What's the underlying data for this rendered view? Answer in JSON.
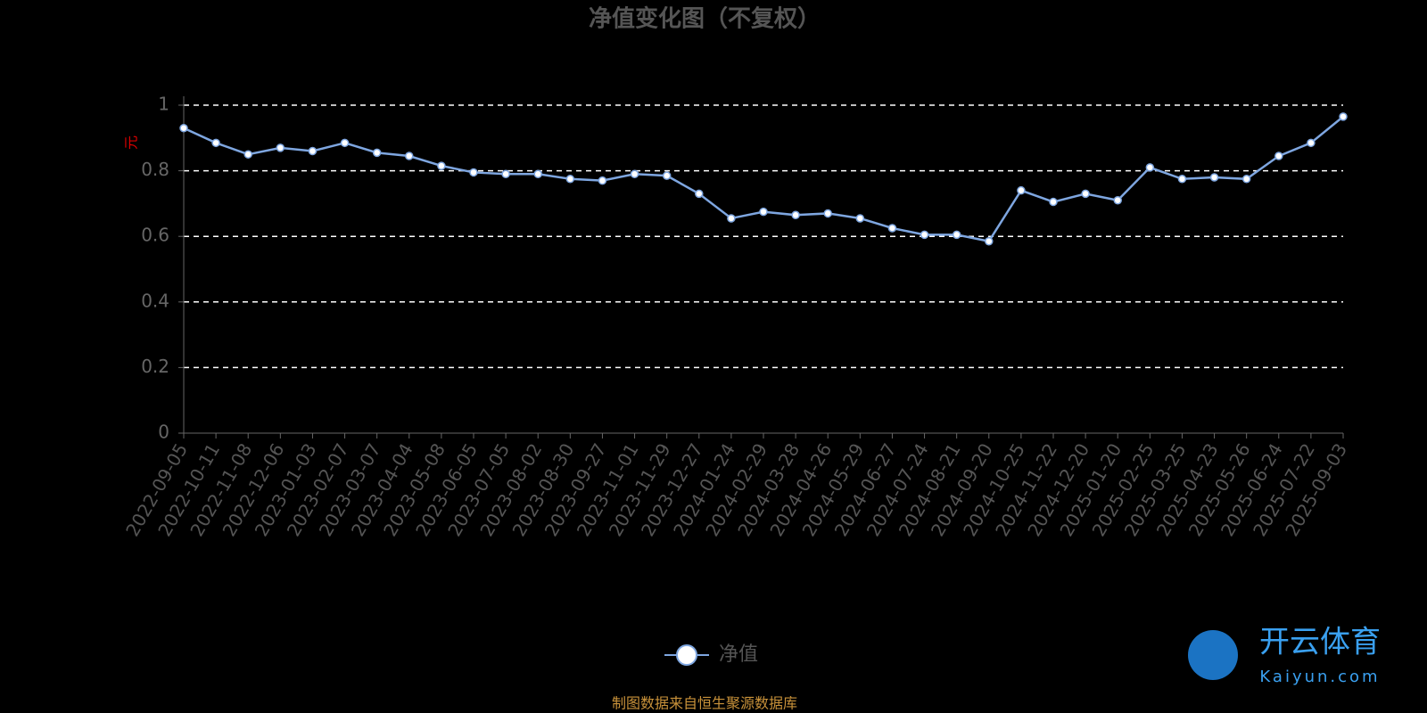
{
  "chart_data": {
    "type": "line",
    "title": "净值变化图（不复权）",
    "y_label": "元",
    "categories": [
      "2022-09-05",
      "2022-10-11",
      "2022-11-08",
      "2022-12-06",
      "2023-01-03",
      "2023-02-07",
      "2023-03-07",
      "2023-04-04",
      "2023-05-08",
      "2023-06-05",
      "2023-07-05",
      "2023-08-02",
      "2023-08-30",
      "2023-09-27",
      "2023-11-01",
      "2023-11-29",
      "2023-12-27",
      "2024-01-24",
      "2024-02-29",
      "2024-03-28",
      "2024-04-26",
      "2024-05-29",
      "2024-06-27",
      "2024-07-24",
      "2024-08-21",
      "2024-09-20",
      "2024-10-25",
      "2024-11-22",
      "2024-12-20",
      "2025-01-20",
      "2025-02-25",
      "2025-03-25",
      "2025-04-23",
      "2025-05-26",
      "2025-06-24",
      "2025-07-22",
      "2025-09-03"
    ],
    "series": [
      {
        "name": "净值",
        "color": "#7ea6e0",
        "values": [
          0.93,
          0.885,
          0.85,
          0.87,
          0.86,
          0.885,
          0.855,
          0.845,
          0.815,
          0.795,
          0.79,
          0.79,
          0.775,
          0.77,
          0.79,
          0.785,
          0.73,
          0.655,
          0.675,
          0.665,
          0.67,
          0.655,
          0.625,
          0.605,
          0.605,
          0.585,
          0.74,
          0.705,
          0.73,
          0.71,
          0.81,
          0.775,
          0.78,
          0.775,
          0.845,
          0.885,
          0.965
        ]
      }
    ],
    "ylim": [
      0,
      1
    ],
    "yticks": [
      0,
      0.2,
      0.4,
      0.6,
      0.8,
      1
    ],
    "grid": true,
    "legend": "bottom",
    "source": "制图数据来自恒生聚源数据库",
    "watermark": {
      "brand": "开云体育",
      "site": "Kaiyun.com"
    }
  }
}
